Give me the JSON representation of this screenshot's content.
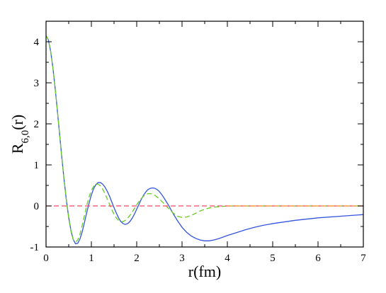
{
  "chart_data": {
    "type": "line",
    "xlabel": "r(fm)",
    "ylabel": {
      "base": "R",
      "subscript": "6,0",
      "suffix": "(r)"
    },
    "xlim": [
      0,
      7
    ],
    "ylim": [
      -1,
      4.5
    ],
    "x_ticks": [
      0,
      1,
      2,
      3,
      4,
      5,
      6,
      7
    ],
    "y_ticks": [
      -1,
      0,
      1,
      2,
      3,
      4
    ],
    "grid": false,
    "legend": "none",
    "series": [
      {
        "color": "#3355dd",
        "style": "solid",
        "points": [
          [
            0.0,
            4.15
          ],
          [
            0.05,
            4.05
          ],
          [
            0.1,
            3.78
          ],
          [
            0.15,
            3.38
          ],
          [
            0.2,
            2.88
          ],
          [
            0.25,
            2.32
          ],
          [
            0.3,
            1.74
          ],
          [
            0.35,
            1.16
          ],
          [
            0.4,
            0.62
          ],
          [
            0.45,
            0.13
          ],
          [
            0.5,
            -0.28
          ],
          [
            0.55,
            -0.6
          ],
          [
            0.6,
            -0.82
          ],
          [
            0.65,
            -0.92
          ],
          [
            0.7,
            -0.91
          ],
          [
            0.75,
            -0.8
          ],
          [
            0.8,
            -0.62
          ],
          [
            0.85,
            -0.39
          ],
          [
            0.9,
            -0.15
          ],
          [
            0.95,
            0.07
          ],
          [
            1.0,
            0.27
          ],
          [
            1.05,
            0.42
          ],
          [
            1.1,
            0.52
          ],
          [
            1.15,
            0.57
          ],
          [
            1.2,
            0.57
          ],
          [
            1.25,
            0.53
          ],
          [
            1.3,
            0.46
          ],
          [
            1.35,
            0.36
          ],
          [
            1.4,
            0.24
          ],
          [
            1.45,
            0.1
          ],
          [
            1.5,
            -0.04
          ],
          [
            1.55,
            -0.17
          ],
          [
            1.6,
            -0.29
          ],
          [
            1.65,
            -0.38
          ],
          [
            1.7,
            -0.43
          ],
          [
            1.75,
            -0.45
          ],
          [
            1.8,
            -0.43
          ],
          [
            1.85,
            -0.38
          ],
          [
            1.9,
            -0.3
          ],
          [
            1.95,
            -0.2
          ],
          [
            2.0,
            -0.08
          ],
          [
            2.05,
            0.04
          ],
          [
            2.1,
            0.16
          ],
          [
            2.15,
            0.26
          ],
          [
            2.2,
            0.34
          ],
          [
            2.25,
            0.4
          ],
          [
            2.3,
            0.43
          ],
          [
            2.35,
            0.44
          ],
          [
            2.4,
            0.43
          ],
          [
            2.45,
            0.4
          ],
          [
            2.5,
            0.35
          ],
          [
            2.55,
            0.28
          ],
          [
            2.6,
            0.2
          ],
          [
            2.65,
            0.11
          ],
          [
            2.7,
            0.02
          ],
          [
            2.8,
            -0.18
          ],
          [
            2.9,
            -0.36
          ],
          [
            3.0,
            -0.52
          ],
          [
            3.1,
            -0.64
          ],
          [
            3.2,
            -0.73
          ],
          [
            3.3,
            -0.79
          ],
          [
            3.4,
            -0.83
          ],
          [
            3.5,
            -0.85
          ],
          [
            3.6,
            -0.85
          ],
          [
            3.7,
            -0.83
          ],
          [
            3.8,
            -0.8
          ],
          [
            3.9,
            -0.76
          ],
          [
            4.0,
            -0.72
          ],
          [
            4.2,
            -0.65
          ],
          [
            4.4,
            -0.58
          ],
          [
            4.6,
            -0.52
          ],
          [
            4.8,
            -0.47
          ],
          [
            5.0,
            -0.43
          ],
          [
            5.5,
            -0.35
          ],
          [
            6.0,
            -0.29
          ],
          [
            6.5,
            -0.25
          ],
          [
            7.0,
            -0.21
          ]
        ]
      },
      {
        "color": "#66cc22",
        "style": "dashed",
        "points": [
          [
            0.0,
            4.15
          ],
          [
            0.05,
            4.05
          ],
          [
            0.1,
            3.78
          ],
          [
            0.15,
            3.38
          ],
          [
            0.2,
            2.88
          ],
          [
            0.25,
            2.32
          ],
          [
            0.3,
            1.74
          ],
          [
            0.35,
            1.16
          ],
          [
            0.4,
            0.62
          ],
          [
            0.45,
            0.12
          ],
          [
            0.5,
            -0.3
          ],
          [
            0.55,
            -0.62
          ],
          [
            0.6,
            -0.82
          ],
          [
            0.65,
            -0.88
          ],
          [
            0.7,
            -0.83
          ],
          [
            0.75,
            -0.68
          ],
          [
            0.8,
            -0.46
          ],
          [
            0.85,
            -0.22
          ],
          [
            0.9,
            0.02
          ],
          [
            0.95,
            0.22
          ],
          [
            1.0,
            0.38
          ],
          [
            1.05,
            0.48
          ],
          [
            1.1,
            0.53
          ],
          [
            1.15,
            0.53
          ],
          [
            1.2,
            0.49
          ],
          [
            1.25,
            0.41
          ],
          [
            1.3,
            0.3
          ],
          [
            1.35,
            0.17
          ],
          [
            1.4,
            0.04
          ],
          [
            1.45,
            -0.09
          ],
          [
            1.5,
            -0.2
          ],
          [
            1.55,
            -0.29
          ],
          [
            1.6,
            -0.35
          ],
          [
            1.65,
            -0.38
          ],
          [
            1.7,
            -0.38
          ],
          [
            1.75,
            -0.35
          ],
          [
            1.8,
            -0.3
          ],
          [
            1.85,
            -0.23
          ],
          [
            1.9,
            -0.15
          ],
          [
            1.95,
            -0.06
          ],
          [
            2.0,
            0.03
          ],
          [
            2.05,
            0.11
          ],
          [
            2.1,
            0.18
          ],
          [
            2.15,
            0.24
          ],
          [
            2.2,
            0.28
          ],
          [
            2.25,
            0.3
          ],
          [
            2.3,
            0.3
          ],
          [
            2.35,
            0.29
          ],
          [
            2.4,
            0.26
          ],
          [
            2.5,
            0.17
          ],
          [
            2.6,
            0.06
          ],
          [
            2.7,
            -0.06
          ],
          [
            2.8,
            -0.17
          ],
          [
            2.9,
            -0.25
          ],
          [
            3.0,
            -0.28
          ],
          [
            3.1,
            -0.27
          ],
          [
            3.2,
            -0.23
          ],
          [
            3.3,
            -0.18
          ],
          [
            3.4,
            -0.12
          ],
          [
            3.5,
            -0.08
          ],
          [
            3.6,
            -0.05
          ],
          [
            3.7,
            -0.03
          ],
          [
            3.8,
            -0.02
          ],
          [
            3.9,
            -0.01
          ],
          [
            4.0,
            0.0
          ],
          [
            4.5,
            0.0
          ],
          [
            5.0,
            0.0
          ],
          [
            6.0,
            0.0
          ],
          [
            7.0,
            0.0
          ]
        ]
      },
      {
        "color": "#ff4466",
        "style": "dashed",
        "points": [
          [
            0.0,
            0.0
          ],
          [
            7.0,
            0.0
          ]
        ]
      },
      {
        "color": "#ff9933",
        "style": "dashed",
        "points": [
          [
            4.0,
            0.0
          ],
          [
            7.0,
            0.0
          ]
        ]
      }
    ]
  }
}
